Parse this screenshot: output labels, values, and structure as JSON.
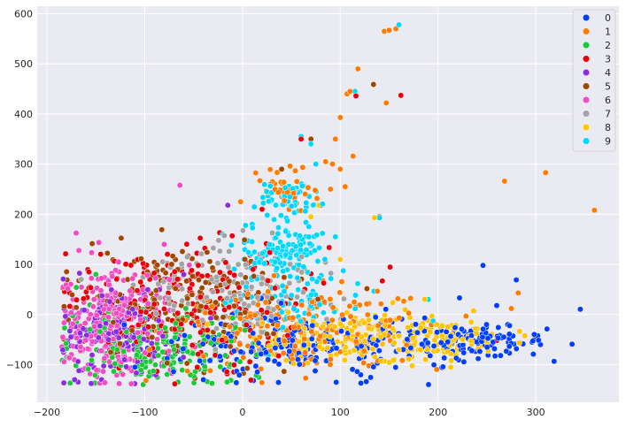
{
  "chart_data": {
    "type": "scatter",
    "title": "",
    "xlabel": "",
    "ylabel": "",
    "xlim": [
      -210,
      385
    ],
    "ylim": [
      -175,
      615
    ],
    "x_ticks": [
      -200,
      -100,
      0,
      100,
      200,
      300
    ],
    "y_ticks": [
      -100,
      0,
      100,
      200,
      300,
      400,
      500,
      600
    ],
    "grid": true,
    "background": "#eaeaf2",
    "legend_position": "top-right",
    "series": [
      {
        "name": "0",
        "color": "#023eff",
        "cluster": [
          {
            "cx": 60,
            "cy": -60,
            "sx": 75,
            "sy": 35,
            "n": 220
          },
          {
            "cx": 240,
            "cy": -55,
            "sx": 35,
            "sy": 15,
            "n": 120
          }
        ],
        "points": [
          [
            246,
            98
          ],
          [
            280,
            69
          ],
          [
            222,
            33
          ],
          [
            260,
            18
          ],
          [
            -110,
            -105
          ],
          [
            -40,
            -130
          ]
        ]
      },
      {
        "name": "1",
        "color": "#ff7c00",
        "cluster": [
          {
            "cx": 60,
            "cy": -30,
            "sx": 70,
            "sy": 40,
            "n": 220
          },
          {
            "cx": 45,
            "cy": 245,
            "sx": 15,
            "sy": 20,
            "n": 40
          }
        ],
        "points": [
          [
            150,
            567
          ],
          [
            157,
            570
          ],
          [
            145,
            565
          ],
          [
            118,
            490
          ],
          [
            147,
            422
          ],
          [
            110,
            445
          ],
          [
            107,
            440
          ],
          [
            134,
            458
          ],
          [
            100,
            393
          ],
          [
            95,
            350
          ],
          [
            85,
            305
          ],
          [
            92,
            300
          ],
          [
            100,
            290
          ],
          [
            113,
            316
          ],
          [
            105,
            255
          ],
          [
            268,
            266
          ],
          [
            310,
            283
          ],
          [
            360,
            208
          ],
          [
            282,
            43
          ],
          [
            275,
            12
          ],
          [
            -2,
            225
          ],
          [
            90,
            250
          ]
        ]
      },
      {
        "name": "2",
        "color": "#1ac938",
        "cluster": [
          {
            "cx": -90,
            "cy": -70,
            "sx": 50,
            "sy": 35,
            "n": 200
          }
        ],
        "points": [
          [
            -170,
            54
          ],
          [
            -150,
            80
          ]
        ]
      },
      {
        "name": "3",
        "color": "#e8000b",
        "cluster": [
          {
            "cx": -60,
            "cy": 20,
            "sx": 60,
            "sy": 60,
            "n": 230
          }
        ],
        "points": [
          [
            162,
            437
          ],
          [
            116,
            436
          ],
          [
            143,
            67
          ],
          [
            60,
            350
          ],
          [
            20,
            210
          ],
          [
            260,
            -52
          ]
        ]
      },
      {
        "name": "4",
        "color": "#8b2be2",
        "cluster": [
          {
            "cx": -130,
            "cy": -40,
            "sx": 30,
            "sy": 45,
            "n": 170
          }
        ],
        "points": [
          [
            -15,
            218
          ],
          [
            -60,
            80
          ]
        ]
      },
      {
        "name": "5",
        "color": "#9f4800",
        "cluster": [
          {
            "cx": -60,
            "cy": 20,
            "sx": 55,
            "sy": 55,
            "n": 190
          }
        ],
        "points": [
          [
            134,
            459
          ],
          [
            70,
            350
          ],
          [
            40,
            290
          ],
          [
            80,
            218
          ],
          [
            140,
            195
          ],
          [
            -170,
            14
          ]
        ]
      },
      {
        "name": "6",
        "color": "#f14cc1",
        "cluster": [
          {
            "cx": -130,
            "cy": -10,
            "sx": 30,
            "sy": 55,
            "n": 260
          }
        ],
        "points": [
          [
            -64,
            258
          ],
          [
            -80,
            140
          ],
          [
            -175,
            -80
          ]
        ]
      },
      {
        "name": "7",
        "color": "#a3a3a3",
        "cluster": [
          {
            "cx": -10,
            "cy": 50,
            "sx": 40,
            "sy": 45,
            "n": 150
          }
        ],
        "points": [
          [
            -165,
            70
          ],
          [
            -180,
            -85
          ],
          [
            40,
            235
          ]
        ]
      },
      {
        "name": "8",
        "color": "#ffc400",
        "cluster": [
          {
            "cx": 110,
            "cy": -45,
            "sx": 55,
            "sy": 30,
            "n": 200
          },
          {
            "cx": 210,
            "cy": -50,
            "sx": 30,
            "sy": 15,
            "n": 80
          }
        ],
        "points": [
          [
            78,
            218
          ],
          [
            100,
            110
          ],
          [
            135,
            193
          ],
          [
            70,
            195
          ],
          [
            55,
            265
          ]
        ]
      },
      {
        "name": "9",
        "color": "#00d7ff",
        "cluster": [
          {
            "cx": 45,
            "cy": 125,
            "sx": 20,
            "sy": 30,
            "n": 120
          },
          {
            "cx": 45,
            "cy": 230,
            "sx": 18,
            "sy": 20,
            "n": 50
          },
          {
            "cx": 60,
            "cy": 20,
            "sx": 30,
            "sy": 30,
            "n": 60
          }
        ],
        "points": [
          [
            160,
            578
          ],
          [
            115,
            445
          ],
          [
            60,
            355
          ],
          [
            70,
            340
          ],
          [
            140,
            193
          ],
          [
            75,
            300
          ],
          [
            190,
            30
          ],
          [
            195,
            -13
          ],
          [
            -20,
            160
          ],
          [
            10,
            180
          ]
        ]
      }
    ]
  }
}
